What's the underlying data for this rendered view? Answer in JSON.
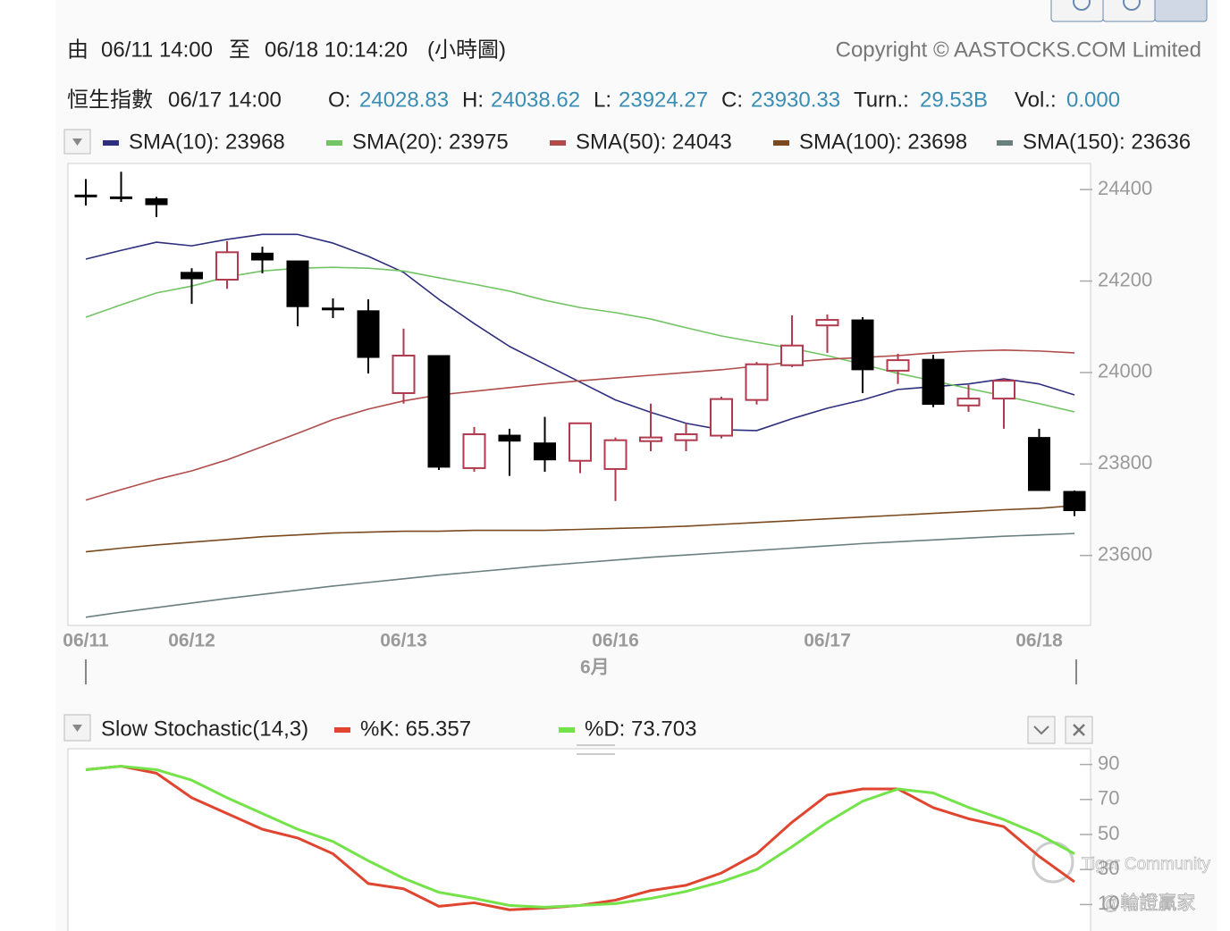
{
  "header": {
    "from_label": "由",
    "from": "06/11 14:00",
    "to_label": "至",
    "to": "06/18 10:14:20",
    "period": "(小時圖)",
    "copyright": "Copyright © AASTOCKS.COM Limited"
  },
  "quote": {
    "name": "恒生指數",
    "time": "06/17 14:00",
    "fields": [
      {
        "label": "O:",
        "value": "24028.83"
      },
      {
        "label": "H:",
        "value": "24038.62"
      },
      {
        "label": "L:",
        "value": "23924.27"
      },
      {
        "label": "C:",
        "value": "23930.33"
      },
      {
        "label": "Turn.:",
        "value": "29.53B"
      },
      {
        "label": "Vol.:",
        "value": "0.000"
      }
    ]
  },
  "watermarks": [
    "Tiger Community",
    "@輪證贏家"
  ],
  "chart_data": [
    {
      "type": "candlestick",
      "categories": [
        "06/11",
        null,
        null,
        "06/12",
        null,
        null,
        null,
        null,
        null,
        "06/13",
        null,
        null,
        null,
        null,
        null,
        "06/16",
        null,
        null,
        null,
        null,
        null,
        "06/17",
        null,
        null,
        null,
        null,
        null,
        "06/18",
        null
      ],
      "x_group_label": "6月",
      "open": [
        24388,
        24384,
        24380,
        24219,
        24203,
        24261,
        24244,
        24141,
        24135,
        23955,
        24037,
        23791,
        23863,
        23846,
        23807,
        23789,
        23850,
        23852,
        23862,
        23940,
        24016,
        24103,
        24115,
        24004,
        24028.83,
        23928,
        23943,
        23858,
        23740
      ],
      "high": [
        24423,
        24439,
        24384,
        24228,
        24287,
        24275,
        24244,
        24162,
        24160,
        24096,
        24037,
        23881,
        23877,
        23903,
        23889,
        23858,
        23932,
        23889,
        23947,
        24023,
        24125,
        24127,
        24121,
        24041,
        24038.62,
        23973,
        23988,
        23877,
        23742
      ],
      "low": [
        24365,
        24373,
        24340,
        24150,
        24183,
        24217,
        24101,
        24119,
        23998,
        23932,
        23787,
        23783,
        23774,
        23783,
        23780,
        23719,
        23828,
        23828,
        23856,
        23930,
        24012,
        24043,
        23955,
        23975,
        23924.27,
        23914,
        23877,
        23742,
        23686
      ],
      "close": [
        24388,
        24384,
        24367,
        24205,
        24263,
        24246,
        24144,
        24137,
        24033,
        24037,
        23793,
        23865,
        23850,
        23809,
        23889,
        23852,
        23858,
        23865,
        23942,
        24018,
        24059,
        24115,
        24006,
        24027,
        23930.33,
        23943,
        23982,
        23742,
        23698
      ],
      "up_color": "#b03a4e",
      "down_color": "#000000",
      "series": [
        {
          "name": "SMA(10): 23968",
          "color": "#2e2e7e",
          "values": [
            24248,
            24267,
            24285,
            24277,
            24291,
            24302,
            24302,
            24283,
            24254,
            24219,
            24160,
            24107,
            24057,
            24018,
            23979,
            23940,
            23913,
            23889,
            23875,
            23873,
            23899,
            23922,
            23940,
            23963,
            23969,
            23975,
            23986,
            23975,
            23951
          ]
        },
        {
          "name": "SMA(20): 23975",
          "color": "#72c464",
          "values": [
            24121,
            24148,
            24174,
            24189,
            24209,
            24222,
            24228,
            24230,
            24228,
            24222,
            24207,
            24193,
            24178,
            24158,
            24142,
            24131,
            24117,
            24098,
            24080,
            24066,
            24053,
            24037,
            24018,
            23998,
            23982,
            23965,
            23949,
            23932,
            23914
          ]
        },
        {
          "name": "SMA(50): 24043",
          "color": "#b04c4c",
          "values": [
            23721,
            23744,
            23766,
            23785,
            23809,
            23838,
            23867,
            23897,
            23920,
            23938,
            23951,
            23959,
            23967,
            23975,
            23982,
            23988,
            23994,
            24000,
            24006,
            24014,
            24023,
            24029,
            24033,
            24037,
            24043,
            24047,
            24049,
            24047,
            24043
          ]
        },
        {
          "name": "SMA(100): 23698",
          "color": "#7a4a1e",
          "values": [
            23608,
            23616,
            23623,
            23629,
            23635,
            23641,
            23645,
            23649,
            23651,
            23653,
            23653,
            23655,
            23655,
            23655,
            23657,
            23659,
            23661,
            23664,
            23668,
            23672,
            23676,
            23680,
            23684,
            23688,
            23692,
            23696,
            23700,
            23703,
            23709
          ]
        },
        {
          "name": "SMA(150): 23636",
          "color": "#6a7f7f",
          "values": [
            23465,
            23476,
            23486,
            23496,
            23506,
            23515,
            23524,
            23533,
            23541,
            23549,
            23557,
            23564,
            23571,
            23578,
            23584,
            23590,
            23596,
            23601,
            23606,
            23611,
            23616,
            23621,
            23626,
            23630,
            23634,
            23638,
            23642,
            23645,
            23648
          ]
        }
      ],
      "ylim": [
        23447,
        24457
      ],
      "yticks": [
        23600,
        23800,
        24000,
        24200,
        24400
      ]
    },
    {
      "type": "line",
      "title": "Slow Stochastic(14,3)",
      "series": [
        {
          "name": "%K: 65.357",
          "color": "#e0452f",
          "values": [
            87,
            89,
            85,
            71,
            62,
            53,
            48,
            39,
            22,
            19,
            9,
            11,
            7,
            8,
            9.5,
            12.5,
            18,
            21,
            28,
            39,
            57,
            72.5,
            76,
            76,
            65.357,
            59,
            54.5,
            37.5,
            23
          ]
        },
        {
          "name": "%D: 73.703",
          "color": "#74e34a",
          "values": [
            87,
            89,
            87,
            81,
            71,
            62,
            53,
            46,
            35,
            25,
            17,
            13.5,
            9.5,
            8.5,
            9.5,
            10.5,
            13.5,
            17.5,
            23,
            30,
            43,
            57,
            69,
            76,
            73.703,
            65.5,
            58.5,
            50,
            39
          ]
        }
      ],
      "ylim": [
        0,
        100
      ],
      "yticks": [
        10,
        30,
        50,
        70,
        90
      ]
    }
  ]
}
